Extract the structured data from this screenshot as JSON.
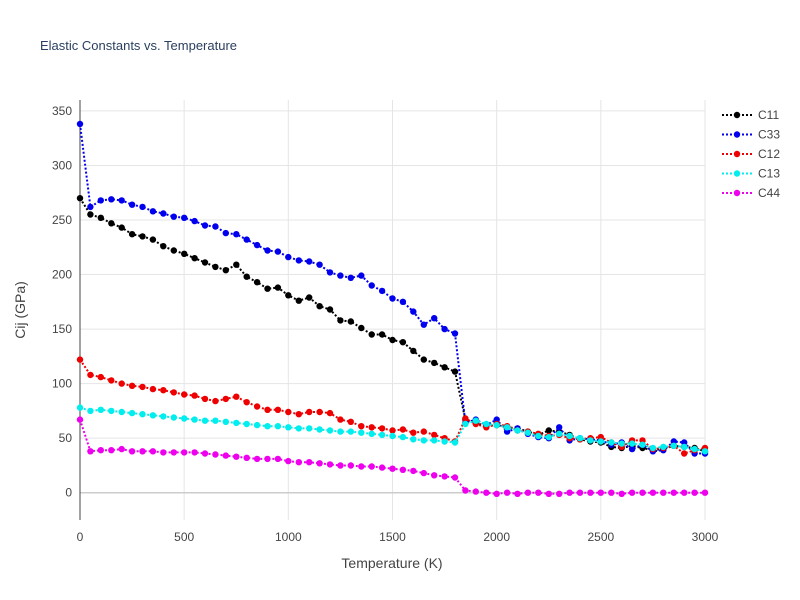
{
  "chart_data": {
    "type": "line",
    "title": "Elastic Constants vs. Temperature",
    "xlabel": "Temperature (K)",
    "ylabel": "Cij (GPa)",
    "xlim": [
      0,
      3000
    ],
    "ylim": [
      -25,
      360
    ],
    "xticks": [
      0,
      500,
      1000,
      1500,
      2000,
      2500,
      3000
    ],
    "xtick_labels": [
      "0",
      "500",
      "1000",
      "1500",
      "2000",
      "2500",
      "3000"
    ],
    "yticks": [
      0,
      50,
      100,
      150,
      200,
      250,
      300,
      350
    ],
    "ytick_labels": [
      "0",
      "50",
      "100",
      "150",
      "200",
      "250",
      "300",
      "350"
    ],
    "grid": true,
    "legend": "top-right",
    "x": [
      0,
      50,
      100,
      150,
      200,
      250,
      300,
      350,
      400,
      450,
      500,
      550,
      600,
      650,
      700,
      750,
      800,
      850,
      900,
      950,
      1000,
      1050,
      1100,
      1150,
      1200,
      1250,
      1300,
      1350,
      1400,
      1450,
      1500,
      1550,
      1600,
      1650,
      1700,
      1750,
      1800,
      1850,
      1900,
      1950,
      2000,
      2050,
      2100,
      2150,
      2200,
      2250,
      2300,
      2350,
      2400,
      2450,
      2500,
      2550,
      2600,
      2650,
      2700,
      2750,
      2800,
      2850,
      2900,
      2950,
      3000
    ],
    "series": [
      {
        "name": "C11",
        "color": "#000000",
        "values": [
          270,
          255,
          252,
          247,
          243,
          237,
          235,
          232,
          226,
          222,
          219,
          215,
          211,
          207,
          204,
          209,
          198,
          193,
          187,
          188,
          181,
          176,
          179,
          171,
          168,
          158,
          157,
          151,
          145,
          145,
          140,
          138,
          130,
          122,
          119,
          115,
          111,
          67,
          64,
          61,
          62,
          60,
          59,
          56,
          53,
          57,
          56,
          53,
          49,
          47,
          46,
          42,
          41,
          43,
          41,
          39,
          40,
          43,
          42,
          41,
          38
        ]
      },
      {
        "name": "C33",
        "color": "#0000ee",
        "values": [
          338,
          262,
          268,
          269,
          268,
          264,
          262,
          258,
          256,
          253,
          252,
          249,
          245,
          244,
          238,
          237,
          232,
          227,
          222,
          221,
          216,
          213,
          212,
          209,
          202,
          199,
          197,
          199,
          190,
          185,
          178,
          175,
          166,
          154,
          160,
          150,
          146,
          64,
          67,
          62,
          67,
          56,
          59,
          54,
          51,
          50,
          60,
          48,
          50,
          49,
          48,
          44,
          46,
          40,
          44,
          38,
          39,
          47,
          46,
          36,
          36
        ]
      },
      {
        "name": "C12",
        "color": "#ee0000",
        "values": [
          122,
          108,
          106,
          103,
          100,
          98,
          97,
          95,
          94,
          92,
          90,
          89,
          86,
          84,
          86,
          88,
          83,
          79,
          76,
          76,
          74,
          72,
          74,
          74,
          73,
          67,
          65,
          61,
          60,
          59,
          57,
          58,
          55,
          56,
          53,
          50,
          47,
          68,
          63,
          60,
          63,
          61,
          57,
          56,
          54,
          52,
          53,
          50,
          49,
          50,
          51,
          46,
          42,
          48,
          48,
          40,
          41,
          43,
          36,
          39,
          41
        ]
      },
      {
        "name": "C13",
        "color": "#00eeee",
        "values": [
          78,
          75,
          76,
          75,
          74,
          73,
          72,
          71,
          70,
          69,
          68,
          67,
          66,
          66,
          65,
          64,
          63,
          62,
          61,
          61,
          60,
          59,
          59,
          58,
          57,
          56,
          56,
          55,
          54,
          53,
          52,
          51,
          49,
          48,
          48,
          47,
          46,
          63,
          66,
          63,
          62,
          60,
          57,
          55,
          52,
          51,
          54,
          52,
          50,
          48,
          47,
          46,
          45,
          45,
          44,
          41,
          42,
          43,
          42,
          40,
          38
        ]
      },
      {
        "name": "C44",
        "color": "#ee00ee",
        "values": [
          67,
          38,
          39,
          39,
          40,
          38,
          38,
          38,
          37,
          37,
          37,
          37,
          36,
          35,
          34,
          33,
          32,
          31,
          31,
          31,
          29,
          28,
          28,
          27,
          26,
          25,
          25,
          24,
          24,
          23,
          22,
          21,
          20,
          18,
          16,
          15,
          14,
          2,
          1,
          0,
          -1,
          0,
          -1,
          0,
          0,
          -1,
          -1,
          0,
          0,
          0,
          0,
          0,
          -1,
          0,
          0,
          0,
          0,
          0,
          0,
          0,
          0
        ]
      }
    ]
  }
}
